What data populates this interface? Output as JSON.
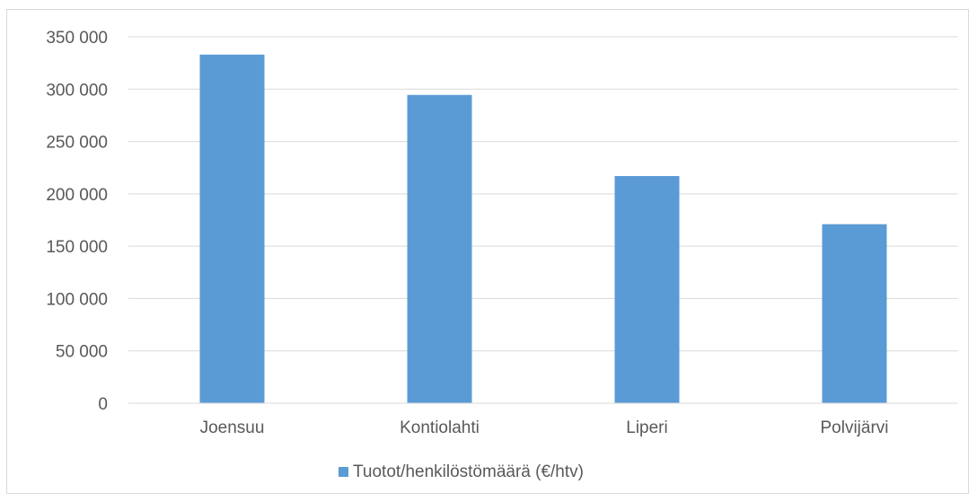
{
  "chart_data": {
    "type": "bar",
    "categories": [
      "Joensuu",
      "Kontiolahti",
      "Liperi",
      "Polvijärvi"
    ],
    "series": [
      {
        "name": "Tuotot/henkilöstömäärä (€/htv)",
        "values": [
          333000,
          294500,
          217000,
          171000
        ],
        "color": "#5b9bd5"
      }
    ],
    "ylim": [
      0,
      350000
    ],
    "yticks": [
      0,
      50000,
      100000,
      150000,
      200000,
      250000,
      300000,
      350000
    ],
    "ytick_labels": [
      "0",
      "50 000",
      "100 000",
      "150 000",
      "200 000",
      "250 000",
      "300 000",
      "350 000"
    ],
    "title": "",
    "xlabel": "",
    "ylabel": "",
    "grid": true,
    "legend_position": "bottom",
    "gridline_color": "#d9d9d9",
    "axis_color": "#d9d9d9"
  }
}
